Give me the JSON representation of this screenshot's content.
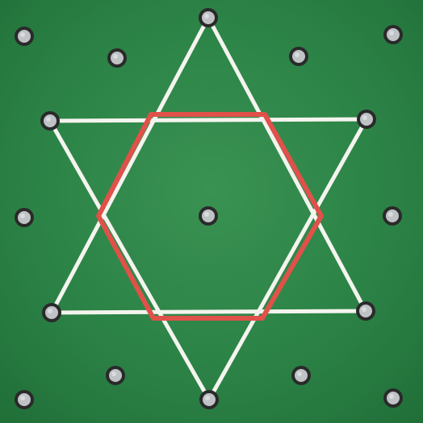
{
  "colors": {
    "board_green": "#2f8c4c",
    "board_green_light": "#3f9e5a",
    "board_green_dark": "#23773d",
    "star_line": "#f4f4ee",
    "hexagon_line": "#e0514a",
    "peg_fill": "#bfc3c6",
    "peg_ring": "#2a2a2a"
  },
  "diagram": {
    "pegs": [
      {
        "id": "top-left-corner"
      },
      {
        "id": "star-top"
      },
      {
        "id": "top-right-corner"
      },
      {
        "id": "inner-top-left"
      },
      {
        "id": "inner-top-right"
      },
      {
        "id": "star-upper-left"
      },
      {
        "id": "star-upper-right"
      },
      {
        "id": "middle-left"
      },
      {
        "id": "center"
      },
      {
        "id": "middle-right"
      },
      {
        "id": "star-lower-left"
      },
      {
        "id": "star-lower-right"
      },
      {
        "id": "inner-bottom-left"
      },
      {
        "id": "inner-bottom-right"
      },
      {
        "id": "bottom-left-corner"
      },
      {
        "id": "star-bottom"
      },
      {
        "id": "bottom-right-corner"
      }
    ],
    "shapes": [
      {
        "id": "star-up-triangle",
        "kind": "triangle",
        "color_key": "star_line"
      },
      {
        "id": "star-down-triangle",
        "kind": "triangle",
        "color_key": "star_line"
      },
      {
        "id": "inner-hexagon",
        "kind": "hexagon",
        "color_key": "hexagon_line"
      }
    ]
  }
}
